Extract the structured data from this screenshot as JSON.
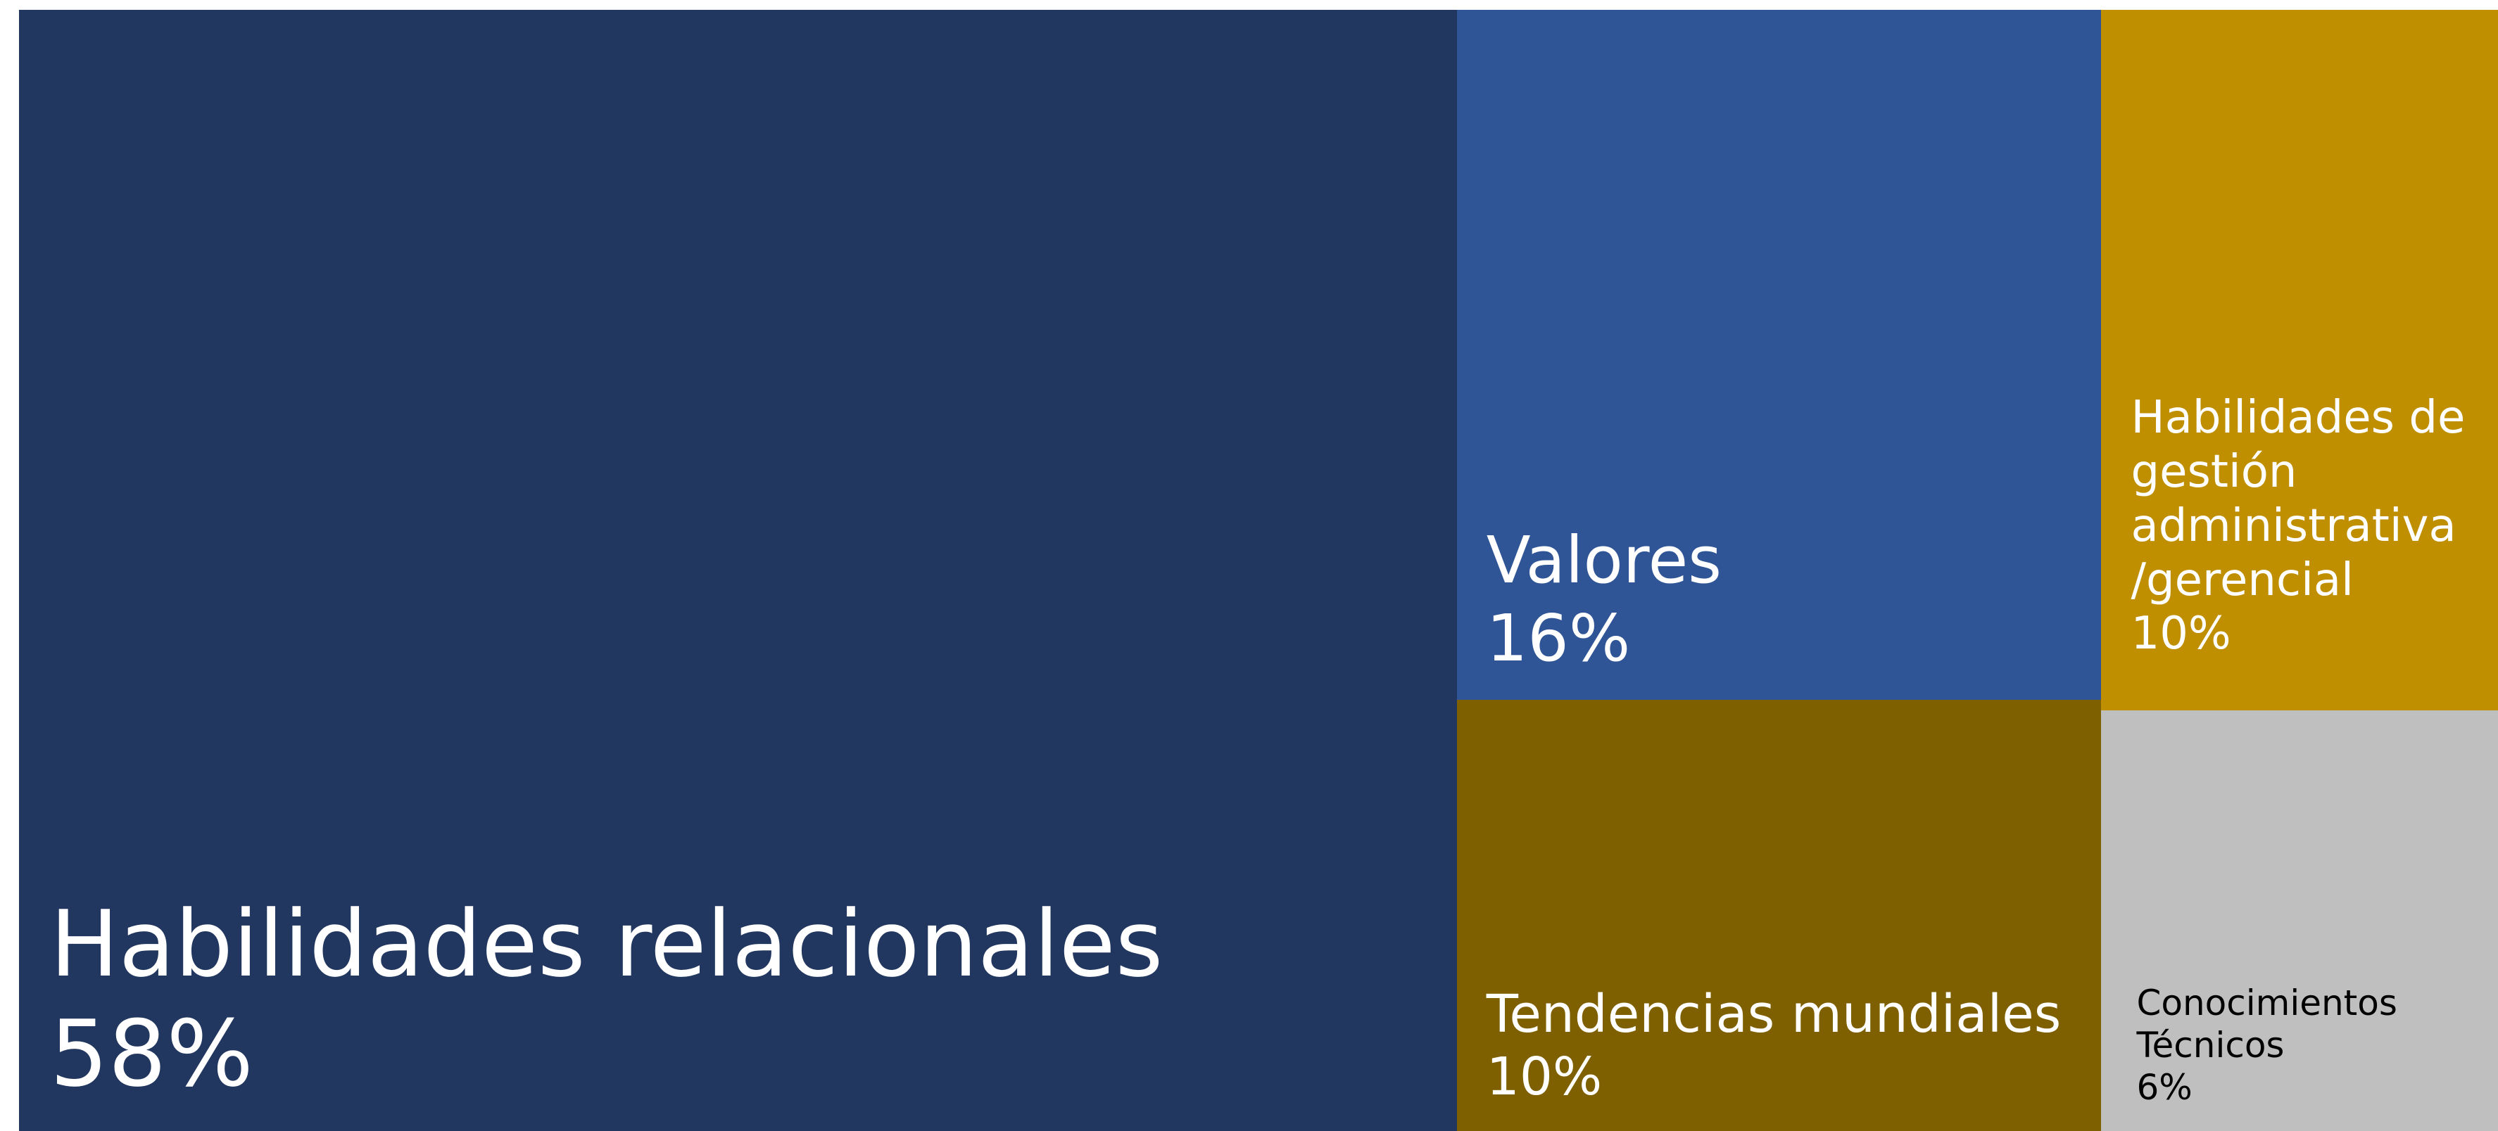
{
  "chart_data": {
    "type": "treemap",
    "categories": [
      "Habilidades relacionales",
      "Valores",
      "Tendencias mundiales",
      "Habilidades de gestión administrativa /gerencial",
      "Conocimientos Técnicos"
    ],
    "values": [
      58,
      16,
      10,
      10,
      6
    ],
    "value_labels": [
      "58%",
      "16%",
      "10%",
      "10%",
      "6%"
    ],
    "colors": [
      "#22375f",
      "#2f5597",
      "#7f6000",
      "#bf8f00",
      "#bfbfbf"
    ]
  }
}
